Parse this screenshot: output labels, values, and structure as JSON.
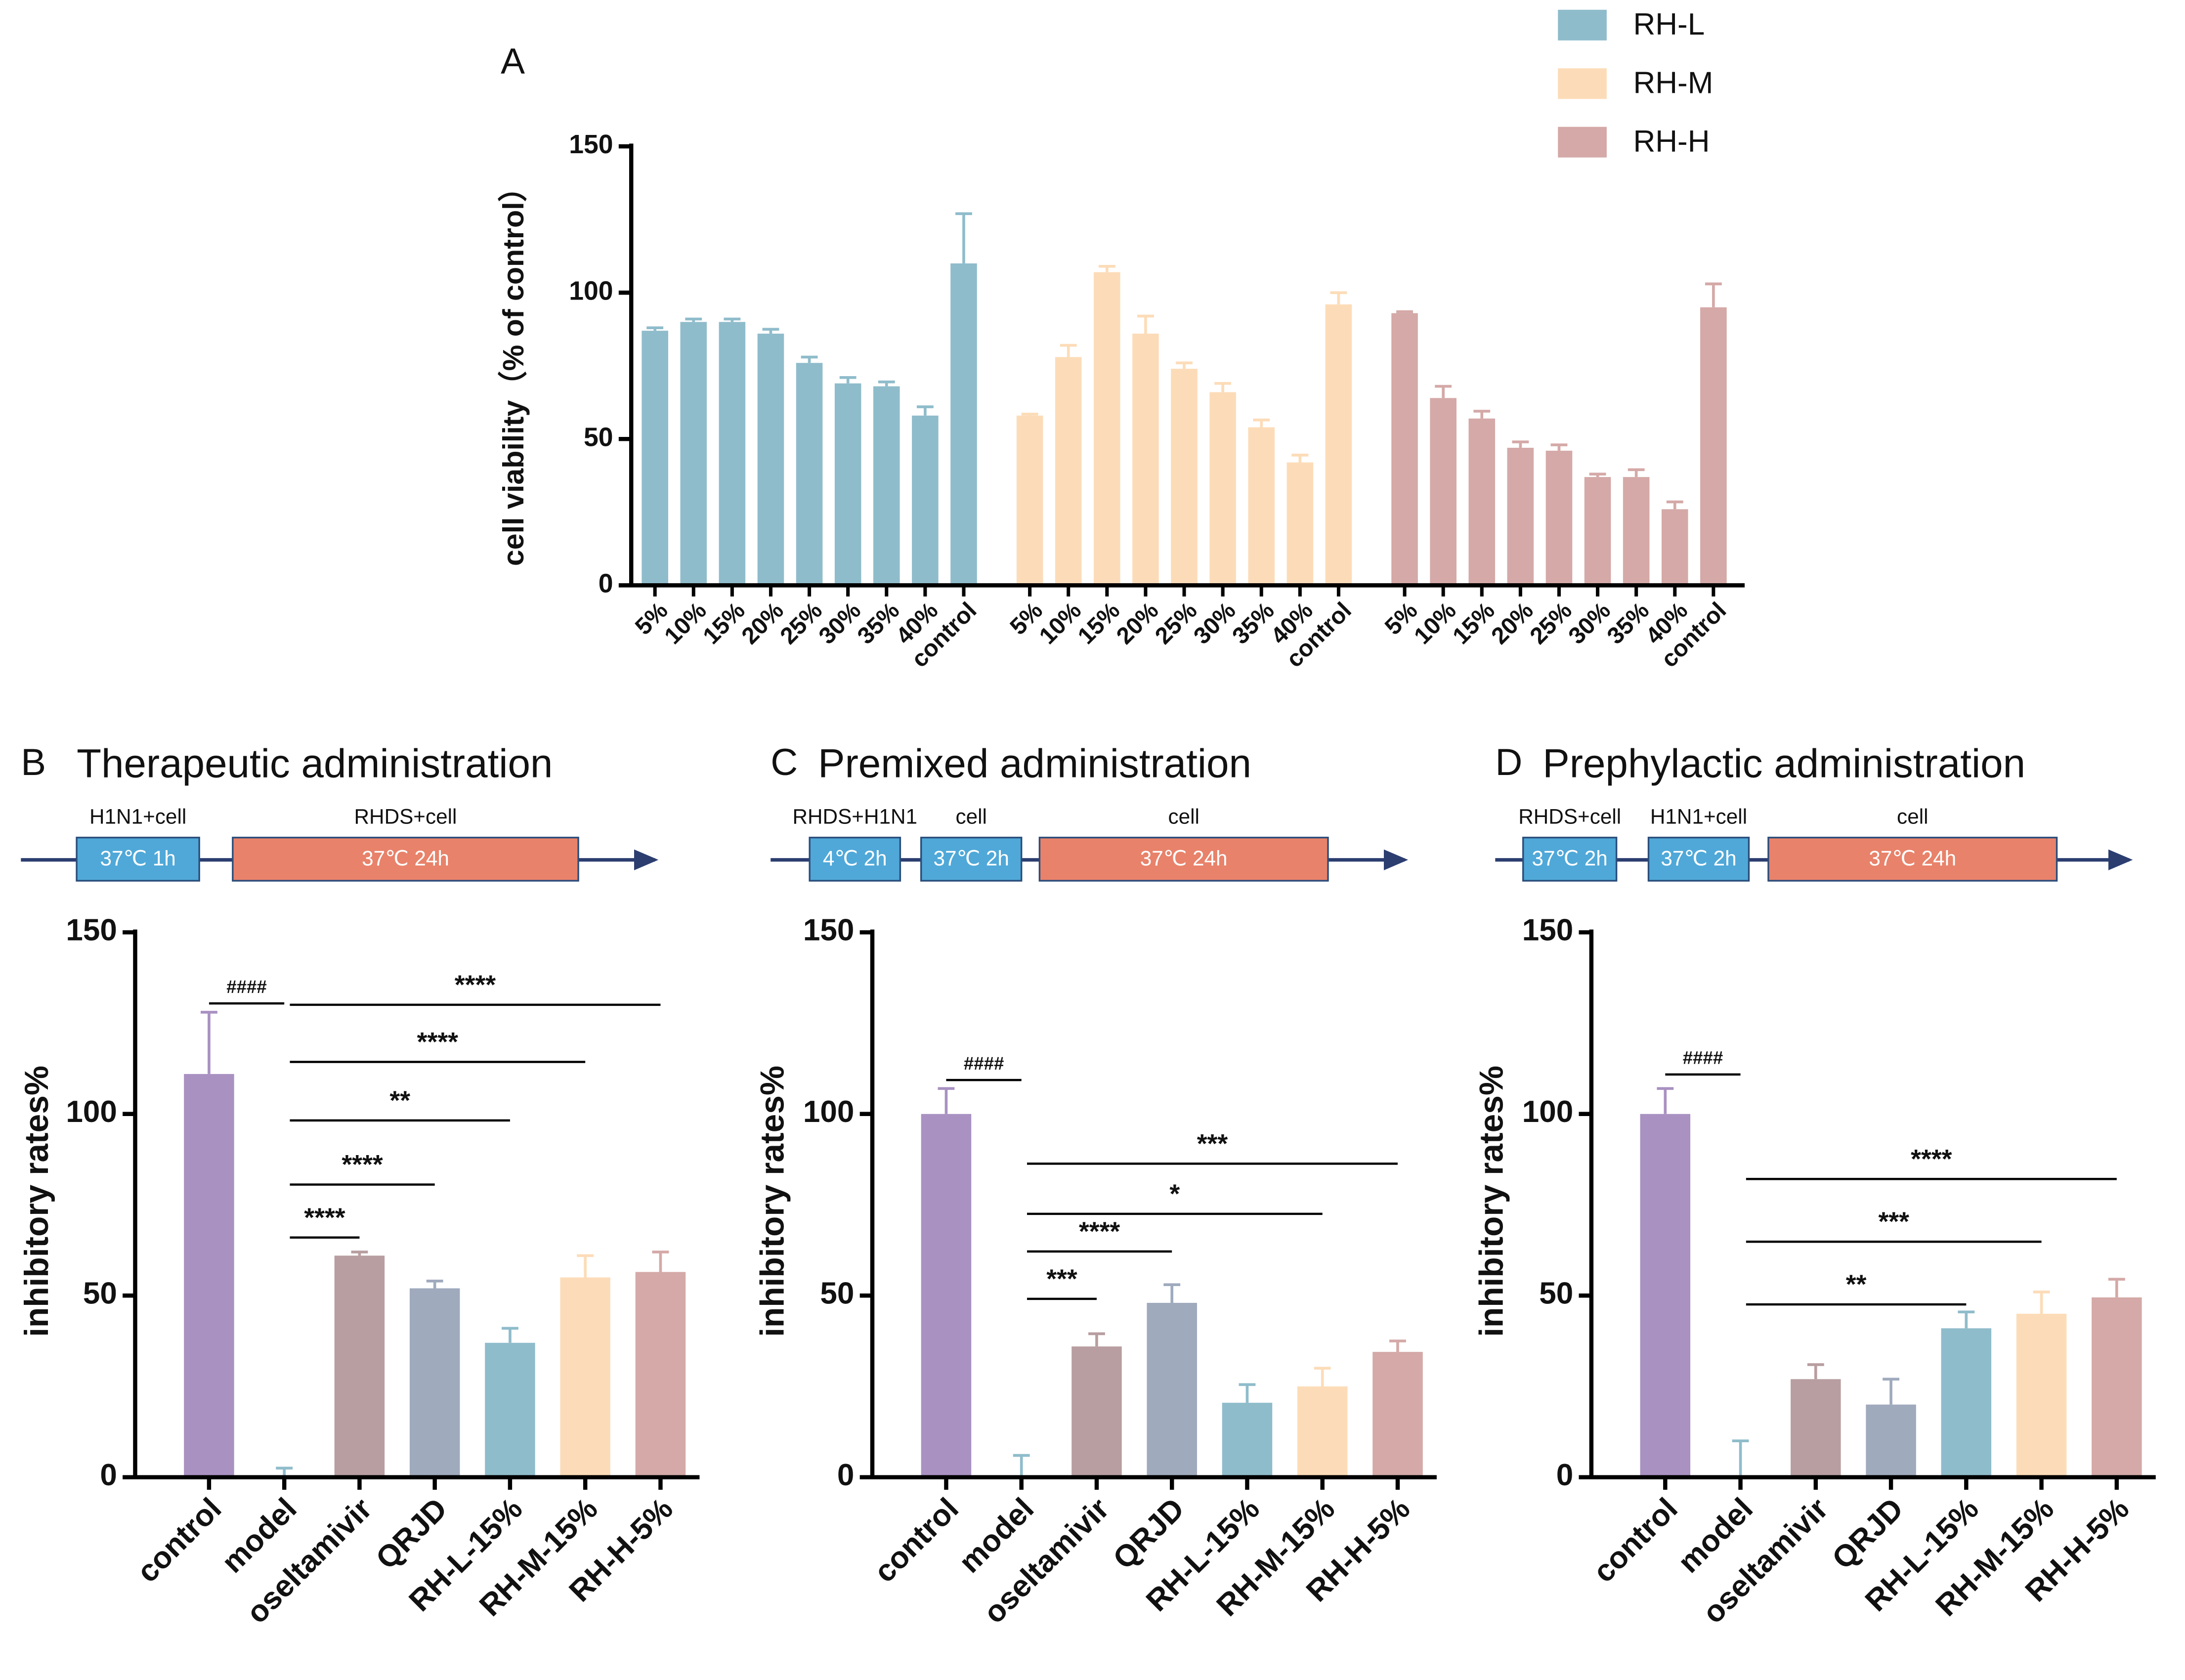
{
  "chart_data": [
    {
      "type": "bar",
      "panel": "A",
      "ylabel": "cell viability（% of control）",
      "ylim": [
        0,
        150
      ],
      "yticks": [
        0,
        50,
        100,
        150
      ],
      "legend": "top-right",
      "series": [
        {
          "name": "RH-L",
          "color": "#8fbccb",
          "categories": [
            "5%",
            "10%",
            "15%",
            "20%",
            "25%",
            "30%",
            "35%",
            "40%",
            "control"
          ],
          "values": [
            87,
            90,
            90,
            86,
            76,
            69,
            68,
            58,
            110
          ],
          "errors": [
            1,
            1,
            1,
            1.5,
            2,
            2,
            1.5,
            3,
            17
          ]
        },
        {
          "name": "RH-M",
          "color": "#fcdcb8",
          "categories": [
            "5%",
            "10%",
            "15%",
            "20%",
            "25%",
            "30%",
            "35%",
            "40%",
            "control"
          ],
          "values": [
            58,
            78,
            107,
            86,
            74,
            66,
            54,
            42,
            96
          ],
          "errors": [
            0.5,
            4,
            2,
            6,
            2,
            3,
            2.5,
            2.5,
            4
          ]
        },
        {
          "name": "RH-H",
          "color": "#d4a9a7",
          "categories": [
            "5%",
            "10%",
            "15%",
            "20%",
            "25%",
            "30%",
            "35%",
            "40%",
            "control"
          ],
          "values": [
            93,
            64,
            57,
            47,
            46,
            37,
            37,
            26,
            95
          ],
          "errors": [
            0.5,
            4,
            2.5,
            2,
            2,
            1,
            2.5,
            2.5,
            8
          ]
        }
      ]
    },
    {
      "type": "bar",
      "panel": "B",
      "title": "Therapeutic administration",
      "protocol": [
        {
          "label": "H1N1+cell",
          "box": "37℃ 1h"
        },
        {
          "label": "RHDS+cell",
          "box": "37℃ 24h"
        }
      ],
      "ylabel": "inhibitory rates%",
      "ylim": [
        0,
        150
      ],
      "yticks": [
        0,
        50,
        100,
        150
      ],
      "categories": [
        "control",
        "model",
        "oseltamivir",
        "QRJD",
        "RH-L-15%",
        "RH-M-15%",
        "RH-H-5%"
      ],
      "values": [
        111,
        0,
        61,
        52,
        37,
        55,
        56.5
      ],
      "errors": [
        17,
        2.5,
        1,
        2,
        4,
        6,
        5.5
      ],
      "colors": [
        "#a991c2",
        "#8fbccb",
        "#b89ea0",
        "#9faabd",
        "#8fbccb",
        "#fcdcb8",
        "#d4a9a7"
      ],
      "annotations": [
        {
          "from": "control",
          "to": "model",
          "label": "####"
        },
        {
          "from": "model",
          "to": "oseltamivir",
          "label": "****"
        },
        {
          "from": "model",
          "to": "QRJD",
          "label": "****"
        },
        {
          "from": "model",
          "to": "RH-L-15%",
          "label": "**"
        },
        {
          "from": "model",
          "to": "RH-M-15%",
          "label": "****"
        },
        {
          "from": "model",
          "to": "RH-H-5%",
          "label": "****"
        }
      ]
    },
    {
      "type": "bar",
      "panel": "C",
      "title": "Premixed administration",
      "protocol": [
        {
          "label": "RHDS+H1N1",
          "box": "4℃ 2h"
        },
        {
          "label": "cell",
          "box": "37℃ 2h"
        },
        {
          "label": "cell",
          "box": "37℃ 24h"
        }
      ],
      "ylabel": "inhibitory rates%",
      "ylim": [
        0,
        150
      ],
      "yticks": [
        0,
        50,
        100,
        150
      ],
      "categories": [
        "control",
        "model",
        "oseltamivir",
        "QRJD",
        "RH-L-15%",
        "RH-M-15%",
        "RH-H-5%"
      ],
      "values": [
        100,
        0,
        36,
        48,
        20.5,
        25,
        34.5
      ],
      "errors": [
        7,
        6,
        3.5,
        5,
        5,
        5,
        3
      ],
      "colors": [
        "#a991c2",
        "#8fbccb",
        "#b89ea0",
        "#9faabd",
        "#8fbccb",
        "#fcdcb8",
        "#d4a9a7"
      ],
      "annotations": [
        {
          "from": "control",
          "to": "model",
          "label": "####"
        },
        {
          "from": "model",
          "to": "oseltamivir",
          "label": "***"
        },
        {
          "from": "model",
          "to": "QRJD",
          "label": "****"
        },
        {
          "from": "model",
          "to": "RH-M-15%",
          "label": "*"
        },
        {
          "from": "model",
          "to": "RH-H-5%",
          "label": "***"
        }
      ]
    },
    {
      "type": "bar",
      "panel": "D",
      "title": "Prephylactic administration",
      "protocol": [
        {
          "label": "RHDS+cell",
          "box": "37℃ 2h"
        },
        {
          "label": "H1N1+cell",
          "box": "37℃ 2h"
        },
        {
          "label": "cell",
          "box": "37℃ 24h"
        }
      ],
      "ylabel": "inhibitory rates%",
      "ylim": [
        0,
        150
      ],
      "yticks": [
        0,
        50,
        100,
        150
      ],
      "categories": [
        "control",
        "model",
        "oseltamivir",
        "QRJD",
        "RH-L-15%",
        "RH-M-15%",
        "RH-H-5%"
      ],
      "values": [
        100,
        0,
        27,
        20,
        41,
        45,
        49.5
      ],
      "errors": [
        7,
        10,
        4,
        7,
        4.5,
        6,
        5
      ],
      "colors": [
        "#a991c2",
        "#8fbccb",
        "#b89ea0",
        "#9faabd",
        "#8fbccb",
        "#fcdcb8",
        "#d4a9a7"
      ],
      "annotations": [
        {
          "from": "control",
          "to": "model",
          "label": "####"
        },
        {
          "from": "model",
          "to": "RH-L-15%",
          "label": "**"
        },
        {
          "from": "model",
          "to": "RH-M-15%",
          "label": "***"
        },
        {
          "from": "model",
          "to": "RH-H-5%",
          "label": "****"
        }
      ]
    }
  ]
}
